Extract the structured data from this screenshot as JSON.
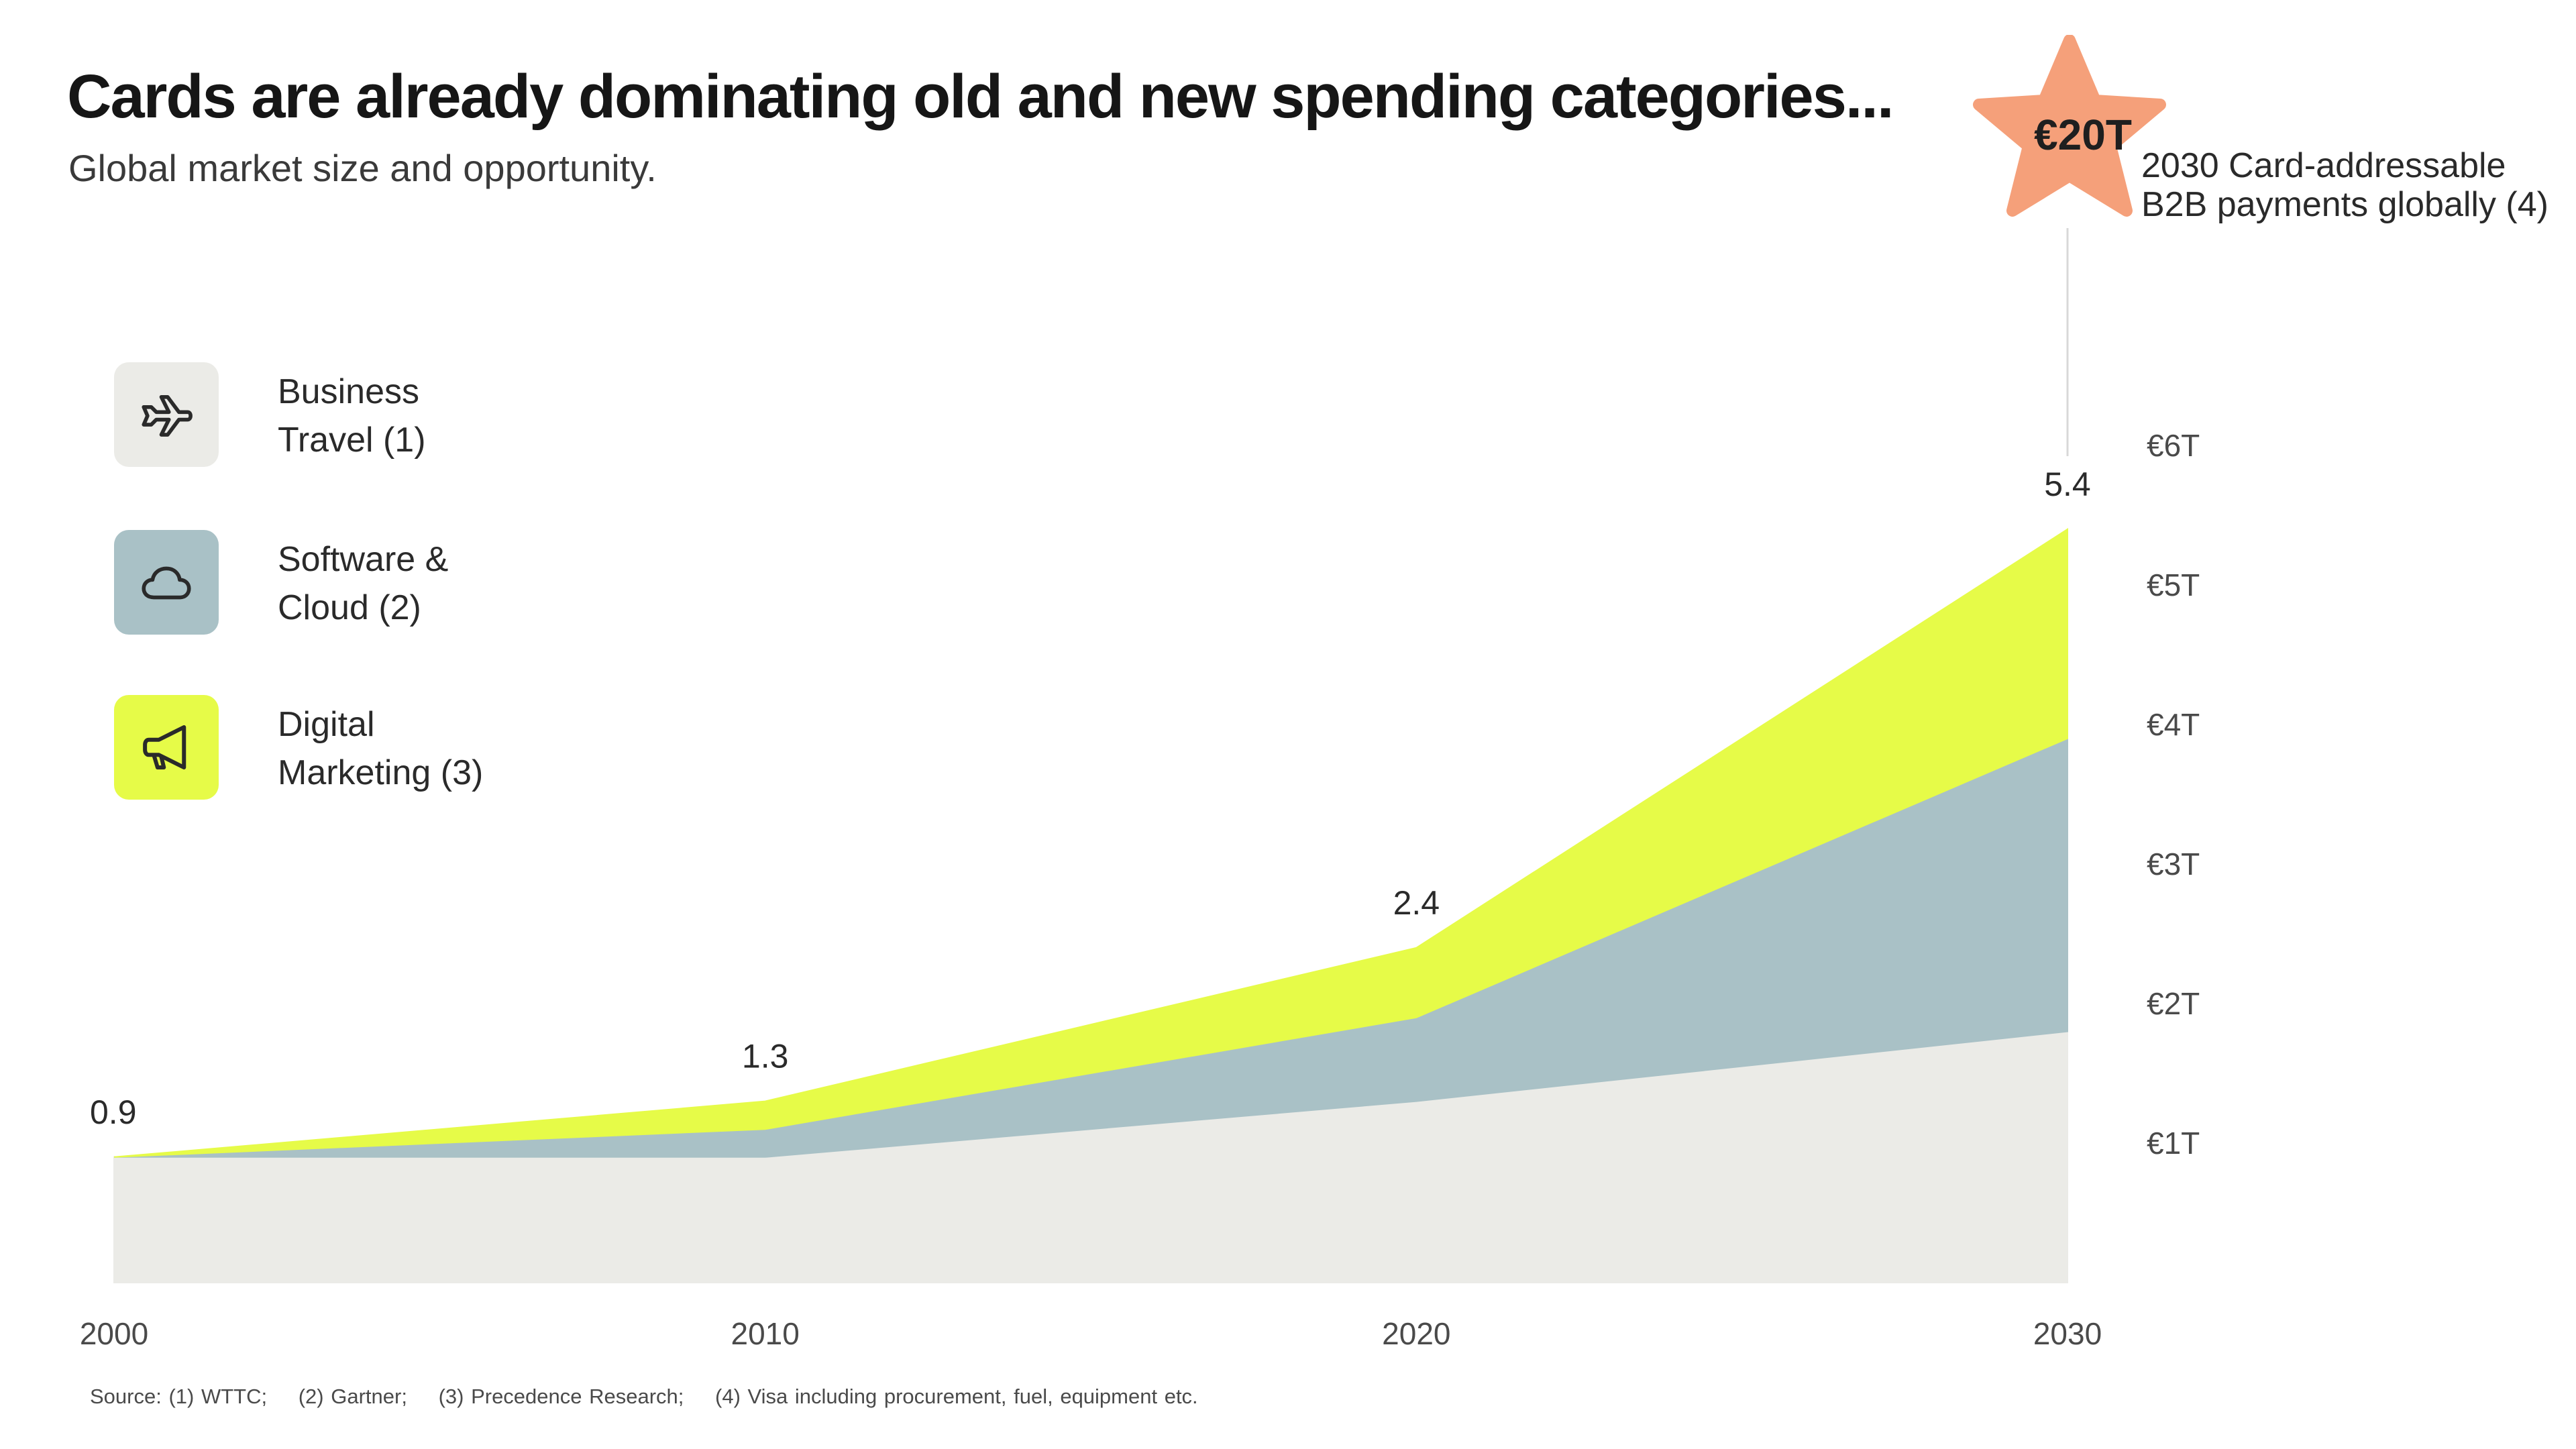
{
  "title": "Cards are already dominating old and new spending categories...",
  "subtitle": "Global market size and opportunity.",
  "legend": [
    {
      "label_line1": "Business",
      "label_line2": "Travel (1)",
      "color": "#ebebe7",
      "icon": "airplane-icon"
    },
    {
      "label_line1": "Software &",
      "label_line2": "Cloud (2)",
      "color": "#a9c1c6",
      "icon": "cloud-icon"
    },
    {
      "label_line1": "Digital",
      "label_line2": "Marketing (3)",
      "color": "#e6fb48",
      "icon": "megaphone-icon"
    }
  ],
  "callout": {
    "value": "€20T",
    "label_line1": "2030 Card-addressable",
    "label_line2": "B2B payments globally (4)",
    "color": "#f5a07a"
  },
  "footnote": {
    "items": [
      "Source: (1) WTTC;",
      "(2) Gartner;",
      "(3) Precedence Research;",
      "(4) Visa including procurement, fuel, equipment etc."
    ]
  },
  "chart_data": {
    "type": "area",
    "stacked": true,
    "x": [
      2000,
      2010,
      2020,
      2030
    ],
    "x_tick_labels": [
      "2000",
      "2010",
      "2020",
      "2030"
    ],
    "y_ticks": [
      1,
      2,
      3,
      4,
      5,
      6
    ],
    "y_tick_labels": [
      "€1T",
      "€2T",
      "€3T",
      "€4T",
      "€5T",
      "€6T"
    ],
    "y_axis_position": "right",
    "ylim": [
      0,
      6.5
    ],
    "series": [
      {
        "name": "Business Travel (1)",
        "color": "#ebebe7",
        "values": [
          0.9,
          0.9,
          1.3,
          1.8
        ]
      },
      {
        "name": "Software & Cloud (2)",
        "color": "#a9c1c6",
        "values": [
          0.0,
          0.2,
          0.6,
          2.1
        ]
      },
      {
        "name": "Digital Marketing (3)",
        "color": "#e6fb48",
        "values": [
          0.0,
          0.2,
          0.5,
          1.5
        ]
      }
    ],
    "total_labels": [
      "0.9",
      "1.3",
      "2.4",
      "5.4"
    ],
    "grid": false
  }
}
